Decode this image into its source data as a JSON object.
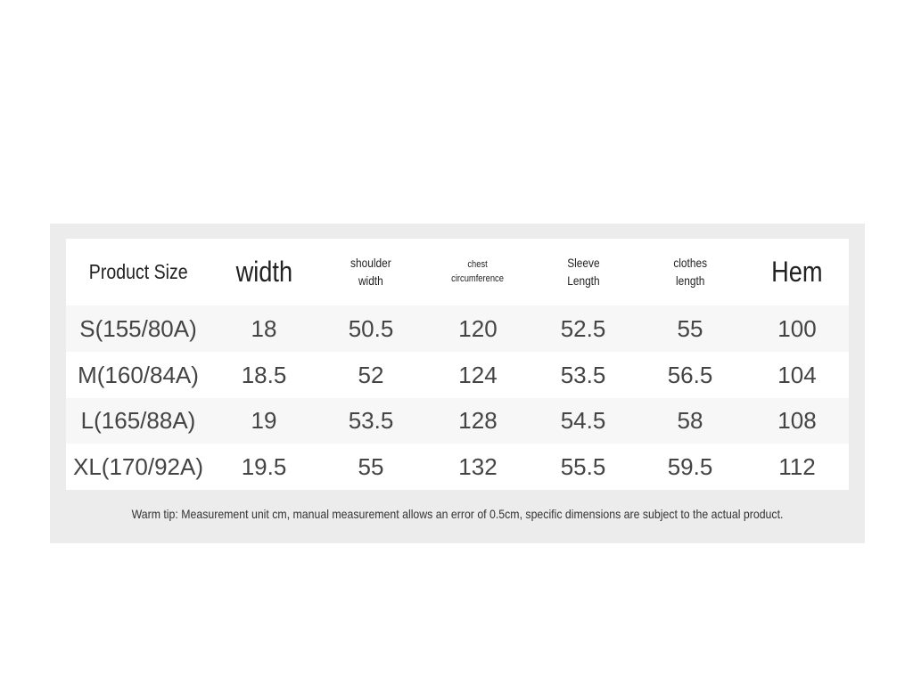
{
  "table": {
    "headers": [
      "Product Size",
      "width",
      "shoulder width",
      "chest circumference",
      "Sleeve Length",
      "clothes length",
      "Hem"
    ],
    "rows": [
      [
        "S(155/80A)",
        "18",
        "50.5",
        "120",
        "52.5",
        "55",
        "100"
      ],
      [
        "M(160/84A)",
        "18.5",
        "52",
        "124",
        "53.5",
        "56.5",
        "104"
      ],
      [
        "L(165/88A)",
        "19",
        "53.5",
        "128",
        "54.5",
        "58",
        "108"
      ],
      [
        "XL(170/92A)",
        "19.5",
        "55",
        "132",
        "55.5",
        "59.5",
        "112"
      ]
    ]
  },
  "footer": {
    "note": "Warm tip: Measurement unit cm, manual measurement allows an error of 0.5cm, specific dimensions are subject to the actual product."
  }
}
